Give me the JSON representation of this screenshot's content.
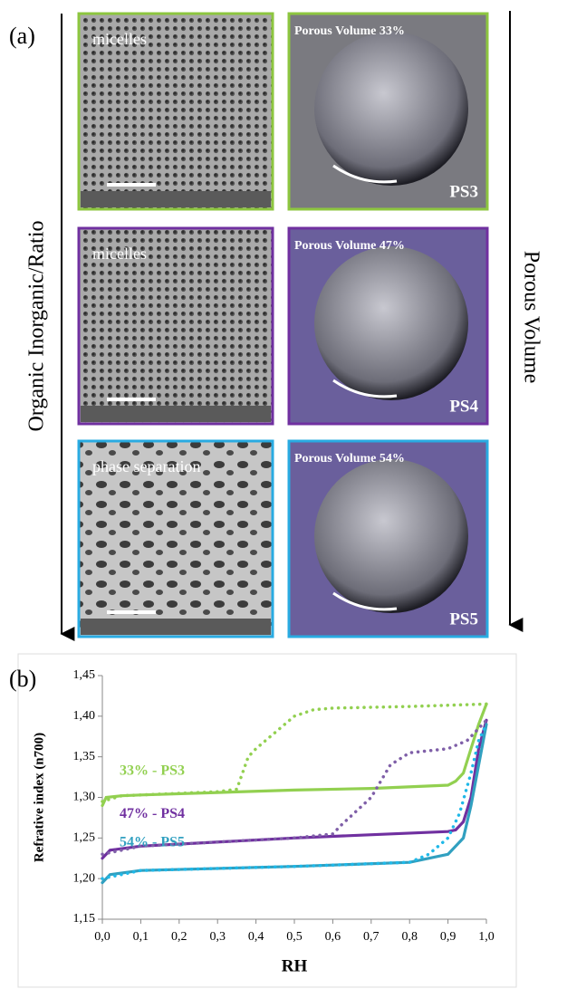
{
  "figure_a": {
    "label": "(a)",
    "left_axis_label": "Organic Inorganic/Ratio",
    "right_axis_label": "Porous Volume",
    "rows": [
      {
        "sem_caption": "micelles",
        "drop_caption": "Porous Volume 33%",
        "sample": "PS3",
        "color": "#8dc63f"
      },
      {
        "sem_caption": "micelles",
        "drop_caption": "Porous Volume 47%",
        "sample": "PS4",
        "color": "#7030a0"
      },
      {
        "sem_caption": "phase separation",
        "drop_caption": "Porous Volume 54%",
        "sample": "PS5",
        "color": "#29abe2"
      }
    ]
  },
  "chart_data": {
    "type": "line",
    "panel_label": "(b)",
    "x_label": "RH",
    "y_label": "Refrative index (n700)",
    "xlim": [
      0,
      1
    ],
    "ylim": [
      1.15,
      1.45
    ],
    "xticks": [
      {
        "value": 0,
        "label": "0,0"
      },
      {
        "value": 0.1,
        "label": "0,1"
      },
      {
        "value": 0.2,
        "label": "0,2"
      },
      {
        "value": 0.3,
        "label": "0,3"
      },
      {
        "value": 0.4,
        "label": "0,4"
      },
      {
        "value": 0.5,
        "label": "0,5"
      },
      {
        "value": 0.6,
        "label": "0,6"
      },
      {
        "value": 0.7,
        "label": "0,7"
      },
      {
        "value": 0.8,
        "label": "0,8"
      },
      {
        "value": 0.9,
        "label": "0,9"
      },
      {
        "value": 1,
        "label": "1,0"
      }
    ],
    "yticks": [
      {
        "value": 1.15,
        "label": "1,15"
      },
      {
        "value": 1.2,
        "label": "1,20"
      },
      {
        "value": 1.25,
        "label": "1,25"
      },
      {
        "value": 1.3,
        "label": "1,30"
      },
      {
        "value": 1.35,
        "label": "1,35"
      },
      {
        "value": 1.4,
        "label": "1,40"
      },
      {
        "value": 1.45,
        "label": "1,45"
      }
    ],
    "series": [
      {
        "name": "33% - PS3",
        "color": "#92d050",
        "dashed": false,
        "x": [
          0,
          0.01,
          0.05,
          0.1,
          0.3,
          0.5,
          0.7,
          0.9,
          0.92,
          0.94,
          0.96,
          0.98,
          1
        ],
        "values": [
          1.29,
          1.3,
          1.302,
          1.303,
          1.306,
          1.309,
          1.311,
          1.315,
          1.32,
          1.33,
          1.36,
          1.39,
          1.415
        ]
      },
      {
        "color": "#92d050",
        "dashed": true,
        "x": [
          0,
          0.05,
          0.3,
          0.35,
          0.38,
          0.4,
          0.45,
          0.5,
          0.55,
          0.6,
          0.8,
          1
        ],
        "values": [
          1.295,
          1.302,
          1.307,
          1.31,
          1.35,
          1.36,
          1.38,
          1.4,
          1.408,
          1.41,
          1.412,
          1.415
        ]
      },
      {
        "name": "47% - PS4",
        "color": "#7030a0",
        "dashed": false,
        "x": [
          0,
          0.02,
          0.1,
          0.5,
          0.9,
          0.92,
          0.94,
          0.96,
          0.98,
          1
        ],
        "values": [
          1.225,
          1.235,
          1.24,
          1.25,
          1.258,
          1.26,
          1.27,
          1.3,
          1.36,
          1.395
        ]
      },
      {
        "color": "#7f5fa8",
        "dashed": true,
        "x": [
          0,
          0.1,
          0.5,
          0.6,
          0.62,
          0.7,
          0.75,
          0.8,
          0.9,
          0.95,
          1
        ],
        "values": [
          1.23,
          1.24,
          1.25,
          1.255,
          1.265,
          1.3,
          1.34,
          1.355,
          1.36,
          1.37,
          1.395
        ]
      },
      {
        "name": "54% - PS5",
        "color": "#31a0c0",
        "dashed": false,
        "x": [
          0,
          0.02,
          0.1,
          0.5,
          0.8,
          0.9,
          0.94,
          0.96,
          0.98,
          1
        ],
        "values": [
          1.195,
          1.205,
          1.21,
          1.215,
          1.22,
          1.23,
          1.25,
          1.29,
          1.34,
          1.39
        ]
      },
      {
        "color": "#1fb8e8",
        "dashed": true,
        "x": [
          0,
          0.1,
          0.5,
          0.8,
          0.85,
          0.9,
          0.93,
          0.96,
          0.98,
          1
        ],
        "values": [
          1.2,
          1.21,
          1.215,
          1.22,
          1.23,
          1.25,
          1.28,
          1.33,
          1.37,
          1.39
        ]
      }
    ]
  }
}
